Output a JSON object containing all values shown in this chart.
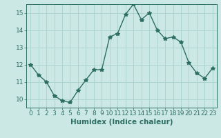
{
  "x": [
    0,
    1,
    2,
    3,
    4,
    5,
    6,
    7,
    8,
    9,
    10,
    11,
    12,
    13,
    14,
    15,
    16,
    17,
    18,
    19,
    20,
    21,
    22,
    23
  ],
  "y": [
    12.0,
    11.4,
    11.0,
    10.2,
    9.9,
    9.8,
    10.5,
    11.1,
    11.7,
    11.7,
    13.6,
    13.8,
    14.9,
    15.5,
    14.6,
    15.0,
    14.0,
    13.5,
    13.6,
    13.3,
    12.1,
    11.5,
    11.2,
    11.8
  ],
  "line_color": "#2d6e62",
  "marker": "*",
  "marker_size": 4,
  "xlabel": "Humidex (Indice chaleur)",
  "xlim": [
    -0.5,
    23.5
  ],
  "ylim": [
    9.5,
    15.5
  ],
  "yticks": [
    10,
    11,
    12,
    13,
    14,
    15
  ],
  "xticks": [
    0,
    1,
    2,
    3,
    4,
    5,
    6,
    7,
    8,
    9,
    10,
    11,
    12,
    13,
    14,
    15,
    16,
    17,
    18,
    19,
    20,
    21,
    22,
    23
  ],
  "bg_color": "#cce8e4",
  "grid_color": "#aed4cf",
  "tick_label_fontsize": 6.5,
  "xlabel_fontsize": 7.5,
  "line_width": 1.0
}
